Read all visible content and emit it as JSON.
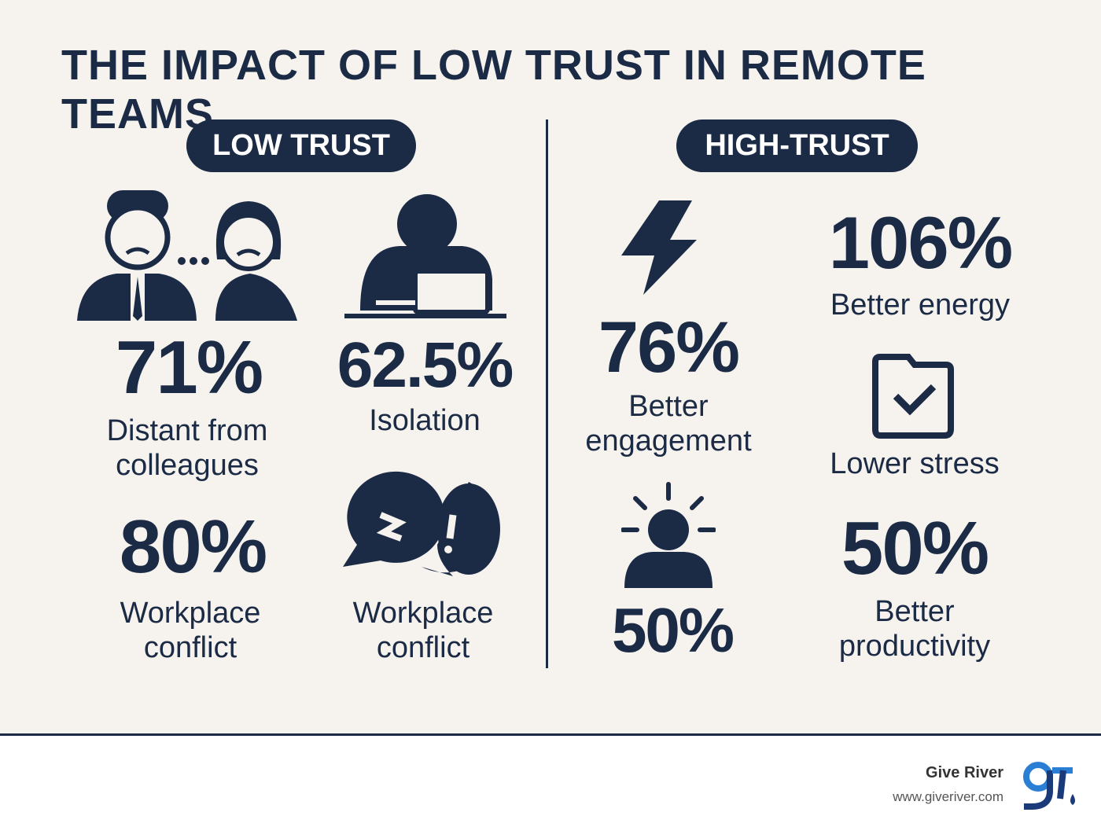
{
  "title": "THE IMPACT OF LOW TRUST IN REMOTE TEAMS",
  "low_trust": {
    "label": "LOW TRUST",
    "stats": [
      {
        "value": "71%",
        "label": "Distant from colleagues"
      },
      {
        "value": "62.5%",
        "label": "Isolation"
      },
      {
        "value": "80%",
        "label": "Workplace conflict"
      },
      {
        "label": "Workplace conflict"
      }
    ]
  },
  "high_trust": {
    "label": "HIGH-TRUST",
    "stats": [
      {
        "value": "76%",
        "label": "Better engagement"
      },
      {
        "value": "106%",
        "label": "Better energy"
      },
      {
        "label": "Lower stress"
      },
      {
        "value": "50%"
      },
      {
        "value": "50%",
        "label": "Better productivity"
      }
    ]
  },
  "footer": {
    "brand": "Give River",
    "url": "www.giveriver.com"
  }
}
